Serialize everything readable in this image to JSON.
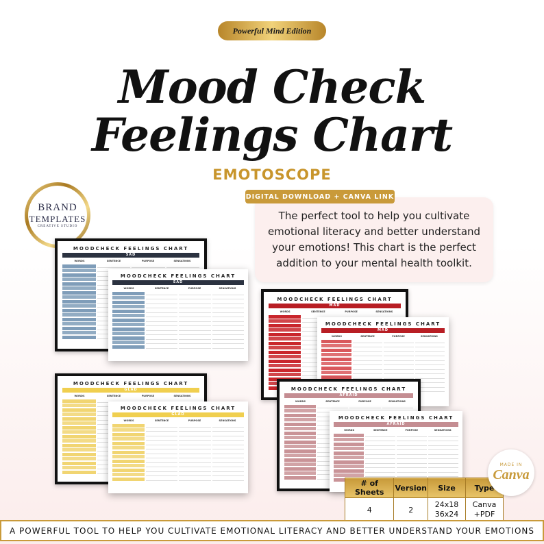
{
  "badge": "Powerful Mind Edition",
  "title": {
    "line1": "Mood Check",
    "line2": "Feelings Chart"
  },
  "subtitle": "EMOTOSCOPE",
  "logo": {
    "line1": "BRAND",
    "line2": "TEMPLATES",
    "line3": "CREATIVE STUDIO"
  },
  "tag": "DIGITAL DOWNLOAD + CANVA LINK",
  "description": "The perfect tool to help you cultivate emotional literacy and better understand your emotions! This chart is the perfect addition to your mental health toolkit.",
  "mockups": [
    {
      "title": "MOODCHECK FEELINGS CHART",
      "banner": "SAD",
      "headers": [
        "WORDS",
        "SENTENCE",
        "PURPOSE",
        "SENSATIONS"
      ],
      "color": "#7f9db9",
      "banner_color": "#2b3240"
    },
    {
      "title": "MOODCHECK FEELINGS CHART",
      "banner": "SAD",
      "headers": [
        "WORDS",
        "SENTENCE",
        "PURPOSE",
        "SENSATIONS"
      ],
      "color": "#7f9db9",
      "banner_color": "#2b3240"
    },
    {
      "title": "MOODCHECK FEELINGS CHART",
      "banner": "GLAD",
      "headers": [
        "WORDS",
        "SENTENCE",
        "PURPOSE",
        "SENSATIONS"
      ],
      "color": "#f1d572",
      "banner_color": "#f0cf4f"
    },
    {
      "title": "MOODCHECK FEELINGS CHART",
      "banner": "GLAD",
      "headers": [
        "WORDS",
        "SENTENCE",
        "PURPOSE",
        "SENSATIONS"
      ],
      "color": "#f1d572",
      "banner_color": "#f0cf4f"
    },
    {
      "title": "MOODCHECK FEELINGS CHART",
      "banner": "MAD",
      "headers": [
        "WORDS",
        "SENTENCE",
        "PURPOSE",
        "SENSATIONS"
      ],
      "color": "#c9262c",
      "banner_color": "#b81e24"
    },
    {
      "title": "MOODCHECK FEELINGS CHART",
      "banner": "MAD",
      "headers": [
        "WORDS",
        "SENTENCE",
        "PURPOSE",
        "SENSATIONS"
      ],
      "color": "#d9585c",
      "banner_color": "#b81e24"
    },
    {
      "title": "MOODCHECK FEELINGS CHART",
      "banner": "AFRAID",
      "headers": [
        "WORDS",
        "SENTENCE",
        "PURPOSE",
        "SENSATIONS"
      ],
      "color": "#c99397",
      "banner_color": "#c48d92"
    },
    {
      "title": "MOODCHECK FEELINGS CHART",
      "banner": "AFRAID",
      "headers": [
        "WORDS",
        "SENTENCE",
        "PURPOSE",
        "SENSATIONS"
      ],
      "color": "#c99397",
      "banner_color": "#c48d92"
    }
  ],
  "table": {
    "headers": [
      "# of Sheets",
      "Version",
      "Size",
      "Type"
    ],
    "rows": [
      [
        "4",
        "2",
        "24x18 36x24",
        "Canva +PDF"
      ]
    ]
  },
  "canva": {
    "small": "MADE IN",
    "name": "Canva"
  },
  "footer": "A POWERFUL TOOL TO HELP YOU CULTIVATE EMOTIONAL LITERACY AND BETTER UNDERSTAND YOUR EMOTIONS"
}
